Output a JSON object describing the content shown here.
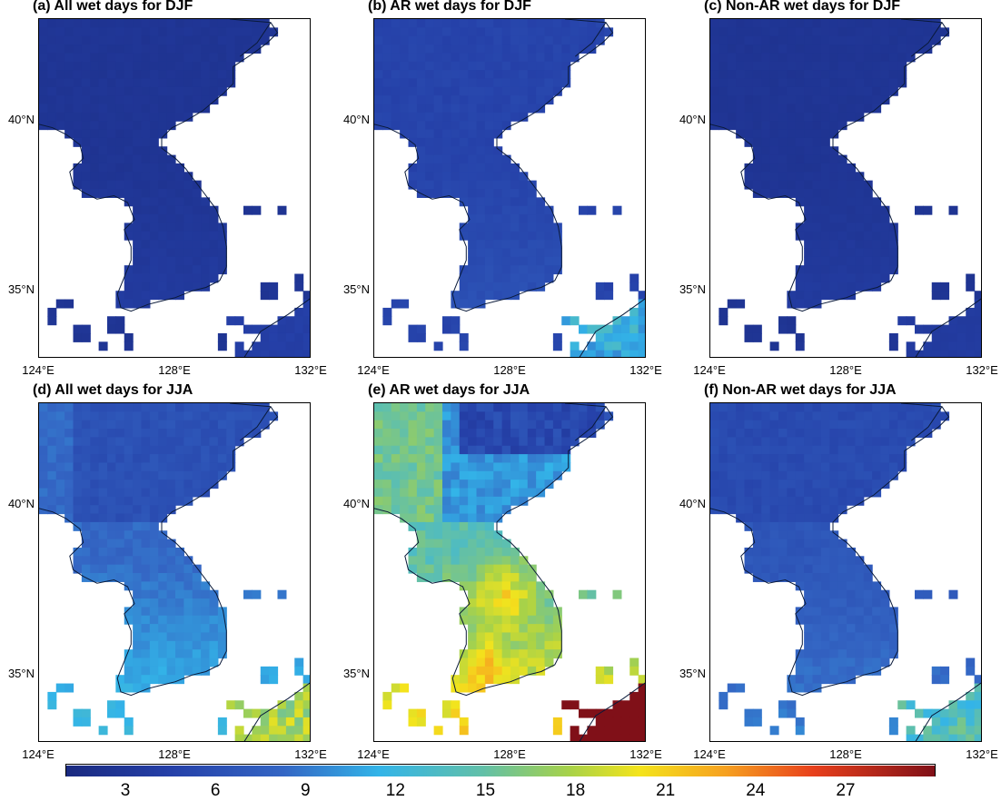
{
  "panels": [
    {
      "id": "a",
      "title": "(a) All wet days for DJF",
      "variant": "djf_all"
    },
    {
      "id": "b",
      "title": "(b) AR wet days for DJF",
      "variant": "djf_ar"
    },
    {
      "id": "c",
      "title": "(c) Non-AR wet days for DJF",
      "variant": "djf_nonar"
    },
    {
      "id": "d",
      "title": "(d) All wet days for JJA",
      "variant": "jja_all"
    },
    {
      "id": "e",
      "title": "(e) AR wet days for JJA",
      "variant": "jja_ar"
    },
    {
      "id": "f",
      "title": "(f) Non-AR wet days for JJA",
      "variant": "jja_nonar"
    }
  ],
  "axes": {
    "lat_labels": [
      "40°N",
      "35°N"
    ],
    "lon_labels": [
      "124°E",
      "128°E",
      "132°E"
    ]
  },
  "colorbar": {
    "ticks": [
      "3",
      "6",
      "9",
      "12",
      "15",
      "18",
      "21",
      "24",
      "27"
    ],
    "range": [
      1,
      30
    ],
    "colormap": "jet"
  }
}
